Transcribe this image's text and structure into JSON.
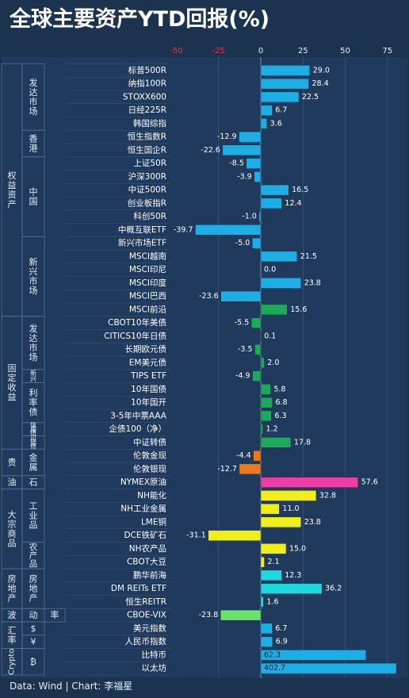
{
  "chart_data": {
    "type": "bar",
    "orientation": "horizontal",
    "title": "全球主要资产YTD回报(%)",
    "xlim": [
      -75,
      75
    ],
    "x_ticks": [
      -50,
      -25,
      0,
      25,
      50,
      75
    ],
    "x_tick_labels": [
      "-50",
      "-25",
      "0",
      "25",
      "50",
      "75"
    ],
    "grid": true,
    "categories": [
      "标普500R",
      "纳指100R",
      "STOXX600",
      "日经225R",
      "韩国综指",
      "恒生指数R",
      "恒生国企R",
      "上证50R",
      "沪深300R",
      "中证500R",
      "创业板指R",
      "科创50R",
      "中概互联ETF",
      "新兴市场ETF",
      "MSCI越南",
      "MSCI印尼",
      "MSCI印度",
      "MSCI巴西",
      "MSCI前沿",
      "CBOT10年美债",
      "CITICS10年日债",
      "长期欧元债",
      "EM美元债",
      "TIPS ETF",
      "10年国债",
      "10年国开",
      "3-5年中票AAA",
      "企债100（净）",
      "中证转债",
      "伦敦金现",
      "伦敦银现",
      "NYMEX原油",
      "NH能化",
      "NH工业金属",
      "LME铜",
      "DCE铁矿石",
      "NH农产品",
      "CBOT大豆",
      "鹏华前海",
      "DM REITs ETF",
      "恒生REITR",
      "CBOE-VIX",
      "美元指数",
      "人民币指数",
      "比特币",
      "以太坊"
    ],
    "values": [
      29.0,
      28.4,
      22.5,
      6.7,
      3.6,
      -12.9,
      -22.6,
      -8.5,
      -3.9,
      16.5,
      12.4,
      -1.0,
      -39.7,
      -5.0,
      21.5,
      0.0,
      23.8,
      -23.6,
      15.6,
      -5.5,
      0.1,
      -3.5,
      2.0,
      -4.9,
      5.8,
      6.8,
      6.3,
      1.2,
      17.8,
      -4.4,
      -12.7,
      57.6,
      32.8,
      11.0,
      23.8,
      -31.1,
      15.0,
      2.1,
      12.3,
      36.2,
      1.6,
      -23.8,
      6.7,
      6.9,
      62.3,
      402.7
    ],
    "value_labels": [
      "29.0",
      "28.4",
      "22.5",
      "6.7",
      "3.6",
      "-12.9",
      "-22.6",
      "-8.5",
      "-3.9",
      "16.5",
      "12.4",
      "-1.0",
      "-39.7",
      "-5.0",
      "21.5",
      "0.0",
      "23.8",
      "-23.6",
      "15.6",
      "-5.5",
      "0.1",
      "-3.5",
      "2.0",
      "-4.9",
      "5.8",
      "6.8",
      "6.3",
      "1.2",
      "17.8",
      "-4.4",
      "-12.7",
      "57.6",
      "32.8",
      "11.0",
      "23.8",
      "-31.1",
      "15.0",
      "2.1",
      "12.3",
      "36.2",
      "1.6",
      "-23.8",
      "6.7",
      "6.9",
      "62.3",
      "402.7"
    ],
    "bar_colors": [
      "#1eaee6",
      "#1eaee6",
      "#1eaee6",
      "#1eaee6",
      "#1eaee6",
      "#1eaee6",
      "#1eaee6",
      "#1eaee6",
      "#1eaee6",
      "#1eaee6",
      "#1eaee6",
      "#1eaee6",
      "#1eaee6",
      "#1eaee6",
      "#1eaee6",
      "#1eaee6",
      "#1eaee6",
      "#1eaee6",
      "#1ea85a",
      "#1ea85a",
      "#1ea85a",
      "#1ea85a",
      "#1ea85a",
      "#1ea85a",
      "#1ea85a",
      "#1ea85a",
      "#1ea85a",
      "#1ea85a",
      "#1ea85a",
      "#e87a1c",
      "#e87a1c",
      "#ee3da6",
      "#f2ee1a",
      "#f2ee1a",
      "#f2ee1a",
      "#f2ee1a",
      "#f2ee1a",
      "#f2ee1a",
      "#1ed8df",
      "#1ed8df",
      "#1ed8df",
      "#6ee06e",
      "#1eaee6",
      "#1eaee6",
      "#1eaee6",
      "#1eaee6"
    ],
    "group_labels": {
      "level1": [
        {
          "label": "权益资产",
          "first": 0,
          "last": 18
        },
        {
          "label": "固定收益",
          "first": 19,
          "last": 28
        },
        {
          "label": "贵",
          "first": 29,
          "last": 30
        },
        {
          "label": "油",
          "first": 31,
          "last": 31
        },
        {
          "label": "大宗商品",
          "first": 32,
          "last": 37
        },
        {
          "label": "房地产",
          "first": 38,
          "last": 40
        },
        {
          "label": "波",
          "first": 41,
          "last": 41
        },
        {
          "label": "汇率",
          "first": 42,
          "last": 43
        },
        {
          "label": "Crypto",
          "first": 44,
          "last": 45
        }
      ],
      "level2": [
        {
          "label": "发达市场",
          "first": 0,
          "last": 4
        },
        {
          "label": "香港",
          "first": 5,
          "last": 6
        },
        {
          "label": "中国",
          "first": 7,
          "last": 12
        },
        {
          "label": "新兴市场",
          "first": 13,
          "last": 18
        },
        {
          "label": "发达市场",
          "first": 19,
          "last": 22
        },
        {
          "label": "新兴",
          "first": 23,
          "last": 23
        },
        {
          "label": "利率债",
          "first": 24,
          "last": 26
        },
        {
          "label": "信用债",
          "first": 27,
          "last": 27
        },
        {
          "label": "可转债",
          "first": 28,
          "last": 28
        },
        {
          "label": "金属",
          "first": 29,
          "last": 30
        },
        {
          "label": "石",
          "first": 31,
          "last": 31
        },
        {
          "label": "工业品",
          "first": 32,
          "last": 35
        },
        {
          "label": "农产品",
          "first": 36,
          "last": 37
        },
        {
          "label": "房地产",
          "first": 38,
          "last": 40
        },
        {
          "label": "动",
          "first": 41,
          "last": 41
        },
        {
          "label": "$",
          "first": 42,
          "last": 42
        },
        {
          "label": "¥",
          "first": 43,
          "last": 43
        },
        {
          "label": "₿",
          "first": 44,
          "last": 45
        }
      ],
      "level3": [
        {
          "label": "率",
          "first": 41,
          "last": 41
        }
      ]
    }
  },
  "footer": {
    "source": "Data: Wind",
    "separator": "|",
    "credit": "Chart: 李福星"
  }
}
